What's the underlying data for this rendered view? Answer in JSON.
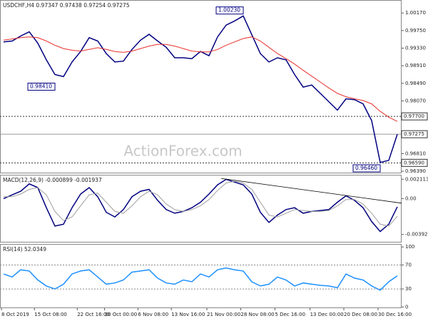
{
  "chart_data": [
    {
      "type": "line",
      "title": "USDCHF,H4 0.97347 0.97438 0.97254 0.97275",
      "watermark": "ActionForex.com",
      "xlim": [
        -0.42,
        46.5
      ],
      "ylim": [
        0.9634,
        1.0048
      ],
      "yticks": [
        {
          "value": 1.0017,
          "label": "1.00170"
        },
        {
          "value": 0.9975,
          "label": "0.99750"
        },
        {
          "value": 0.9933,
          "label": "0.99330"
        },
        {
          "value": 0.9891,
          "label": "0.98910"
        },
        {
          "value": 0.9849,
          "label": "0.98490"
        },
        {
          "value": 0.9807,
          "label": "0.98070"
        },
        {
          "value": 0.9681,
          "label": "0.96810"
        },
        {
          "value": 0.9639,
          "label": "0.96390"
        }
      ],
      "series": [
        {
          "color": "#000080",
          "values": [
            0.9948,
            0.995,
            0.9962,
            0.9972,
            0.9945,
            0.9905,
            0.987,
            0.9865,
            0.99,
            0.9925,
            0.9958,
            0.995,
            0.992,
            0.99,
            0.9902,
            0.993,
            0.9952,
            0.9966,
            0.995,
            0.9935,
            0.991,
            0.991,
            0.9908,
            0.9925,
            0.9915,
            0.996,
            0.9988,
            0.9998,
            1.001,
            0.9965,
            0.992,
            0.99,
            0.991,
            0.9905,
            0.987,
            0.984,
            0.9845,
            0.9825,
            0.9805,
            0.9785,
            0.9812,
            0.981,
            0.98,
            0.976,
            0.966,
            0.9665,
            0.97275
          ]
        },
        {
          "color": "#e8302c",
          "values": [
            0.9952,
            0.9955,
            0.9958,
            0.996,
            0.9958,
            0.995,
            0.994,
            0.9932,
            0.9928,
            0.9926,
            0.993,
            0.9934,
            0.993,
            0.9925,
            0.9923,
            0.9926,
            0.9932,
            0.9938,
            0.9942,
            0.9942,
            0.9938,
            0.9932,
            0.9926,
            0.9924,
            0.9924,
            0.993,
            0.994,
            0.9948,
            0.9956,
            0.996,
            0.995,
            0.9935,
            0.992,
            0.9908,
            0.9895,
            0.988,
            0.9866,
            0.9852,
            0.9838,
            0.9825,
            0.9817,
            0.9812,
            0.9808,
            0.98,
            0.9782,
            0.9768,
            0.9758
          ]
        }
      ],
      "levels": [
        {
          "value": 0.977,
          "label": "0.97700",
          "style": "dotted"
        },
        {
          "value": 0.9659,
          "label": "0.96590",
          "style": "dotted"
        },
        {
          "value": 0.97275,
          "label": "0.97275",
          "style": "solid"
        }
      ],
      "annotations": [
        {
          "value": 1.0023,
          "label": "1.00230",
          "x": 28
        },
        {
          "value": 0.9841,
          "label": "0.98410",
          "x": 6
        },
        {
          "value": 0.9646,
          "label": "0.96460",
          "x": 44
        }
      ]
    },
    {
      "type": "line",
      "title": "MACD(12,26,9) -0.000899 -0.001937",
      "xlim": [
        -0.42,
        46.5
      ],
      "ylim": [
        -0.0048,
        0.0026
      ],
      "yticks": [
        0.002113,
        {
          "value": 0,
          "label": "0.00"
        },
        -0.003922
      ],
      "series": [
        {
          "color": "#000080",
          "values": [
            0,
            0.0004,
            0.0008,
            0.0016,
            0.0012,
            -0.001,
            -0.003,
            -0.0028,
            -0.001,
            0.0005,
            0.0012,
            0.0002,
            -0.0015,
            -0.002,
            -0.0012,
            0.0002,
            0.0008,
            0.001,
            -0.0002,
            -0.0012,
            -0.0016,
            -0.0014,
            -0.001,
            -0.0004,
            0.0005,
            0.0015,
            0.0021,
            0.0018,
            0.0015,
            0.0005,
            -0.0015,
            -0.0026,
            -0.0018,
            -0.0012,
            -0.001,
            -0.0016,
            -0.0014,
            -0.0013,
            -0.0012,
            -0.0004,
            0.0003,
            -0.0002,
            -0.001,
            -0.0025,
            -0.0036,
            -0.0028,
            -0.000899
          ]
        },
        {
          "color": "#a0a0a0",
          "values": [
            0.0002,
            0.0002,
            0.0005,
            0.001,
            0.0012,
            0.0004,
            -0.0014,
            -0.0024,
            -0.002,
            -0.0008,
            0.0004,
            0.0006,
            -0.0004,
            -0.0014,
            -0.0016,
            -0.0008,
            0.0002,
            0.0008,
            0.0004,
            -0.0006,
            -0.0012,
            -0.0014,
            -0.0012,
            -0.0008,
            -0.0001,
            0.0009,
            0.0017,
            0.0019,
            0.0017,
            0.001,
            -0.0004,
            -0.0018,
            -0.002,
            -0.0016,
            -0.0012,
            -0.0013,
            -0.0014,
            -0.0014,
            -0.0013,
            -0.0008,
            -0.0001,
            -0.0001,
            -0.0006,
            -0.0016,
            -0.0028,
            -0.003,
            -0.001937
          ]
        }
      ],
      "trendline": {
        "x": [
          25.4,
          46.5
        ],
        "y": [
          0.0022,
          -0.0005
        ],
        "color": "#000000"
      }
    },
    {
      "type": "line",
      "title": "RSI(14) 52.0349",
      "xlim": [
        -0.42,
        46.5
      ],
      "ylim": [
        -2,
        105
      ],
      "yticks": [
        100,
        70,
        30,
        0
      ],
      "levels": [
        70,
        30
      ],
      "series": [
        {
          "color": "#1e90ff",
          "values": [
            55,
            50,
            62,
            60,
            45,
            35,
            30,
            38,
            55,
            60,
            62,
            50,
            38,
            40,
            45,
            58,
            60,
            62,
            48,
            40,
            38,
            45,
            42,
            55,
            50,
            62,
            65,
            62,
            60,
            42,
            35,
            38,
            50,
            45,
            35,
            40,
            38,
            36,
            35,
            32,
            55,
            48,
            45,
            35,
            28,
            42,
            52.0349
          ]
        }
      ],
      "xticks": [
        {
          "value": -0.25,
          "label": "8 Oct 2019"
        },
        {
          "value": 3.6,
          "label": "15 Oct 08:00"
        },
        {
          "value": 8.6,
          "label": "22 Oct 16:00"
        },
        {
          "value": 11.8,
          "label": "30 Oct 00:00"
        },
        {
          "value": 15.7,
          "label": "6 Nov 08:00"
        },
        {
          "value": 19.6,
          "label": "13 Nov 16:00"
        },
        {
          "value": 23.75,
          "label": "21 Nov 00:00"
        },
        {
          "value": 27.7,
          "label": "28 Nov 08:00"
        },
        {
          "value": 31.7,
          "label": "5 Dec 16:00"
        },
        {
          "value": 35.8,
          "label": "13 Dec 00:00"
        },
        {
          "value": 39.75,
          "label": "20 Dec 08:00"
        },
        {
          "value": 43.75,
          "label": "30 Dec 16:00"
        }
      ]
    }
  ]
}
